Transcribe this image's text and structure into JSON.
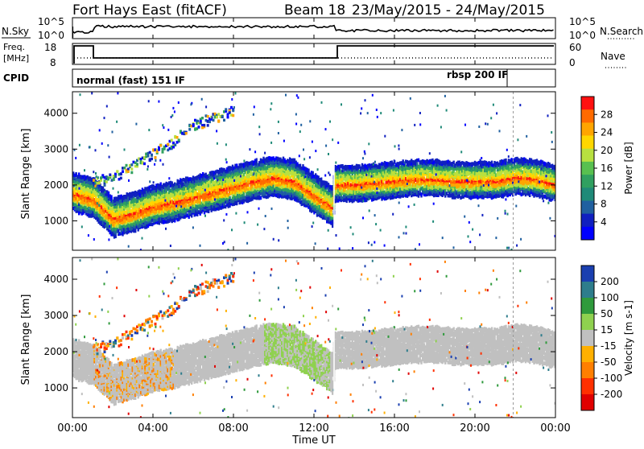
{
  "header": {
    "radar": "Fort Hays East (fitACF)",
    "beam": "Beam 18",
    "date_range": "23/May/2015 - 24/May/2015"
  },
  "noise_panel": {
    "left_label": "N.Sky",
    "right_label": "N.Search",
    "ticks": [
      "10^5",
      "10^0"
    ]
  },
  "freq_panel": {
    "left_label_1": "Freq.",
    "left_label_2": "[MHz]",
    "left_ticks": [
      "18",
      "8"
    ],
    "right_ticks": [
      "60",
      "0"
    ],
    "right_label": "Nave"
  },
  "cpid_panel": {
    "label": "CPID",
    "mode_1": "normal (fast) 151 IF",
    "mode_2": "rbsp 200 IF"
  },
  "power_colorbar": {
    "label": "Power [dB]",
    "ticks": [
      "28",
      "24",
      "20",
      "16",
      "12",
      "8",
      "4"
    ],
    "colors": [
      "#ff1010",
      "#ff6a00",
      "#ffa500",
      "#ffd700",
      "#b8e040",
      "#58c050",
      "#30a060",
      "#1f8a78",
      "#2060a0",
      "#1020c0",
      "#0000ff"
    ]
  },
  "velocity_colorbar": {
    "label": "Velocity [m s-1]",
    "ticks": [
      "200",
      "100",
      "50",
      "15",
      "-15",
      "-50",
      "-100",
      "-200"
    ],
    "colors": [
      "#1a3fb0",
      "#2e7d8c",
      "#2f9a3c",
      "#8fd14f",
      "#c0c0c0",
      "#ffb000",
      "#ff7f00",
      "#ff3000",
      "#e00000"
    ]
  },
  "x_axis": {
    "label": "Time UT",
    "ticks": [
      "00:00",
      "04:00",
      "08:00",
      "12:00",
      "16:00",
      "20:00",
      "00:00"
    ]
  },
  "y_axis": {
    "label": "Slant Range [km]",
    "ticks": [
      "4000",
      "3000",
      "2000",
      "1000"
    ]
  },
  "chart_data": {
    "type": "heatmap",
    "x_range_hours": [
      0,
      24
    ],
    "y_range_km": [
      180,
      4600
    ],
    "cpid_switch_hours": 21.9,
    "mode_switch_hours": 13.0,
    "ground_scatter_band": {
      "x_hours": [
        0.0,
        1.0,
        2.0,
        3.0,
        4.0,
        5.0,
        6.0,
        7.0,
        8.0,
        9.0,
        10.0,
        11.0,
        12.0,
        12.9,
        13.0,
        14.0,
        15.0,
        16.0,
        17.0,
        18.0,
        19.0,
        20.0,
        21.0,
        22.0,
        23.0,
        24.0
      ],
      "slant_range_km": [
        1850,
        1700,
        1150,
        1300,
        1500,
        1600,
        1750,
        1900,
        2050,
        2200,
        2300,
        2200,
        1800,
        1450,
        2100,
        2100,
        2150,
        2200,
        2250,
        2250,
        2200,
        2200,
        2200,
        2300,
        2250,
        2100
      ]
    },
    "ionospheric_scatter_band": {
      "x_hours": [
        1.0,
        2.0,
        3.0,
        4.0,
        5.0,
        6.0,
        7.0,
        8.0
      ],
      "slant_range_km": [
        2100,
        2250,
        2550,
        2900,
        3250,
        3700,
        3900,
        4100
      ]
    }
  }
}
